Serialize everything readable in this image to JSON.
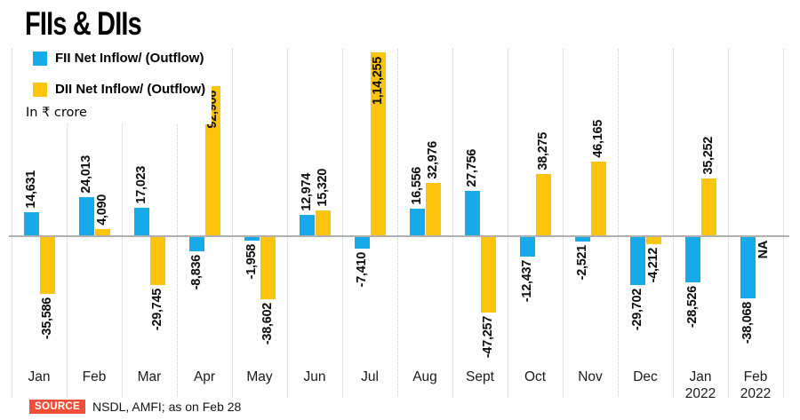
{
  "title": "FIIs & DIIs",
  "legend": [
    {
      "label": "FII Net Inflow/ (Outflow)",
      "color": "#16abe8"
    },
    {
      "label": "DII Net Inflow/ (Outflow)",
      "color": "#fcc40d"
    }
  ],
  "unit_note": "In ₹ crore",
  "source": {
    "badge": "SOURCE",
    "badge_color": "#f04e37",
    "text": "NSDL, AMFI; as on Feb 28"
  },
  "chart_data": {
    "type": "bar",
    "title": "FIIs & DIIs",
    "unit": "₹ crore",
    "categories": [
      "Jan",
      "Feb",
      "Mar",
      "Apr",
      "May",
      "Jun",
      "Jul",
      "Aug",
      "Sept",
      "Oct",
      "Nov",
      "Dec",
      "Jan 2022",
      "Feb 2022"
    ],
    "series": [
      {
        "name": "FII Net Inflow/ (Outflow)",
        "color": "#16abe8",
        "values": [
          14631,
          24013,
          17023,
          -8836,
          -1958,
          12974,
          -7410,
          16556,
          27756,
          -12437,
          -2521,
          -29702,
          -28526,
          -38068
        ],
        "labels": [
          "14,631",
          "24,013",
          "17,023",
          "-8,836",
          "-1,958",
          "12,974",
          "-7,410",
          "16,556",
          "27,756",
          "-12,437",
          "-2,521",
          "-29,702",
          "-28,526",
          "-38,068"
        ]
      },
      {
        "name": "DII Net Inflow/ (Outflow)",
        "color": "#fcc40d",
        "values": [
          -35586,
          4090,
          -29745,
          92906,
          -38602,
          15320,
          114255,
          32976,
          -47257,
          38275,
          46165,
          -4212,
          35252,
          null
        ],
        "labels": [
          "-35,586",
          "4,090",
          "-29,745",
          "92,906",
          "-38,602",
          "15,320",
          "1,14,255",
          "32,976",
          "-47,257",
          "38,275",
          "46,165",
          "-4,212",
          "35,252",
          "NA"
        ]
      }
    ],
    "ylim": [
      -47257,
      114255
    ],
    "baseline": 0,
    "grid": "vertical-dotted",
    "legend_position": "top-left",
    "grid_color": "#c9c9c9",
    "baseline_color": "#b0b0b0"
  }
}
